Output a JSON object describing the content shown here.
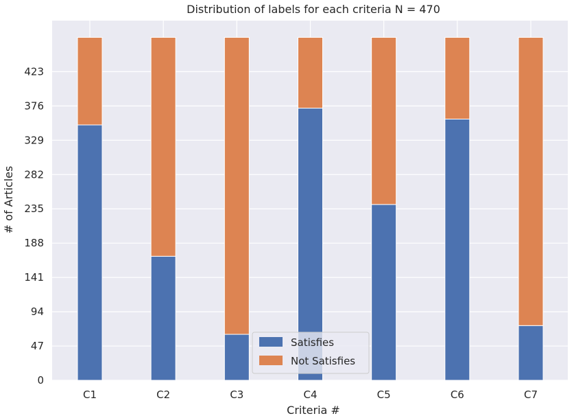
{
  "chart_data": {
    "type": "bar",
    "stacked": true,
    "title": "Distribution of labels for each criteria N = 470",
    "xlabel": "Criteria #",
    "ylabel": "# of Articles",
    "categories": [
      "C1",
      "C2",
      "C3",
      "C4",
      "C5",
      "C6",
      "C7"
    ],
    "yticks": [
      0,
      47,
      94,
      141,
      188,
      235,
      282,
      329,
      376,
      423
    ],
    "ylim": [
      0,
      493
    ],
    "grid": true,
    "legend_position": "bottom-center",
    "series": [
      {
        "name": "Satisfies",
        "color": "#4c72b0",
        "values": [
          350,
          170,
          63,
          373,
          241,
          358,
          75
        ]
      },
      {
        "name": "Not Satisfies",
        "color": "#dd8452",
        "values": [
          120,
          300,
          407,
          97,
          229,
          112,
          395
        ]
      }
    ],
    "background": "#eaeaf2",
    "grid_color": "#ffffff"
  }
}
